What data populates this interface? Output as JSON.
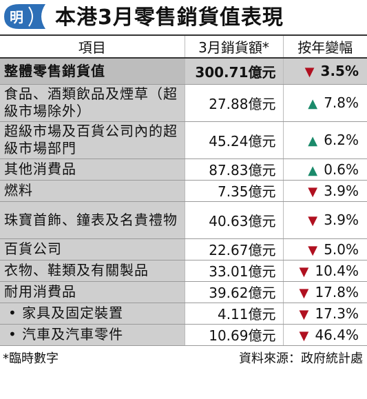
{
  "header": {
    "logo_char": "明",
    "title": "本港3月零售銷貨值表現"
  },
  "columns": {
    "item": "項目",
    "amount": "3月銷貨額*",
    "change": "按年變幅"
  },
  "rows": [
    {
      "name": "整體零售銷貨值",
      "amount": "300.71億元",
      "change": "3.5%",
      "direction": "down",
      "total": true
    },
    {
      "name": "食品、酒類飲品及煙草（超級市場除外）",
      "amount": "27.88億元",
      "change": "7.8%",
      "direction": "up"
    },
    {
      "name": "超級市場及百貨公司內的超級市場部門",
      "amount": "45.24億元",
      "change": "6.2%",
      "direction": "up"
    },
    {
      "name": "其他消費品",
      "amount": "87.83億元",
      "change": "0.6%",
      "direction": "up"
    },
    {
      "name": "燃料",
      "amount": "7.35億元",
      "change": "3.9%",
      "direction": "down"
    },
    {
      "name": "珠寶首飾、鐘表及名貴禮物",
      "amount": "40.63億元",
      "change": "3.9%",
      "direction": "down"
    },
    {
      "name": "百貨公司",
      "amount": "22.67億元",
      "change": "5.0%",
      "direction": "down"
    },
    {
      "name": "衣物、鞋類及有關製品",
      "amount": "33.01億元",
      "change": "10.4%",
      "direction": "down"
    },
    {
      "name": "耐用消費品",
      "amount": "39.62億元",
      "change": "17.8%",
      "direction": "down"
    },
    {
      "name": "• 家具及固定裝置",
      "amount": "4.11億元",
      "change": "17.3%",
      "direction": "down",
      "sub": true
    },
    {
      "name": "• 汽車及汽車零件",
      "amount": "10.69億元",
      "change": "46.4%",
      "direction": "down",
      "sub": true
    }
  ],
  "footer": {
    "note": "*臨時數字",
    "source": "資料來源：政府統計處"
  },
  "colors": {
    "down": "#b01020",
    "up": "#1a8a6a",
    "shade": "#cfcfcf"
  }
}
